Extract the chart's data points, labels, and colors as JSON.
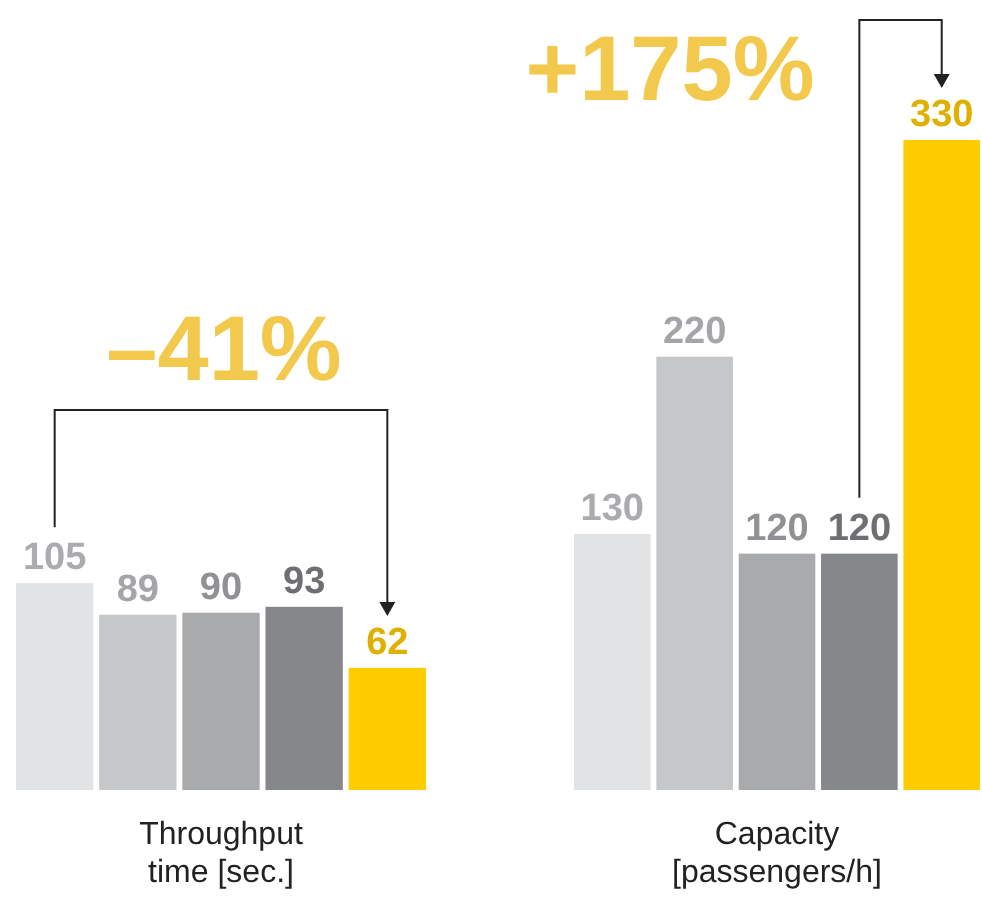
{
  "chart_data": [
    {
      "type": "bar",
      "categories": [
        null,
        null,
        null,
        null,
        null
      ],
      "values": [
        105,
        89,
        90,
        93,
        62
      ],
      "colors": [
        "#e2e3e5",
        "#c6c7c9",
        "#a9aaac",
        "#86878a",
        "#ffcc00"
      ],
      "data_labels": true,
      "xlabel": "Throughput\ntime [sec.]",
      "annotations": [
        "–41%"
      ]
    },
    {
      "type": "bar",
      "categories": [
        null,
        null,
        null,
        null,
        null
      ],
      "values": [
        130,
        220,
        120,
        120,
        330
      ],
      "colors": [
        "#e2e3e5",
        "#c6c7c9",
        "#a9aaac",
        "#86878a",
        "#ffcc00"
      ],
      "data_labels": true,
      "xlabel": "Capacity\n[passengers/h]",
      "annotations": [
        "+175%"
      ]
    }
  ]
}
